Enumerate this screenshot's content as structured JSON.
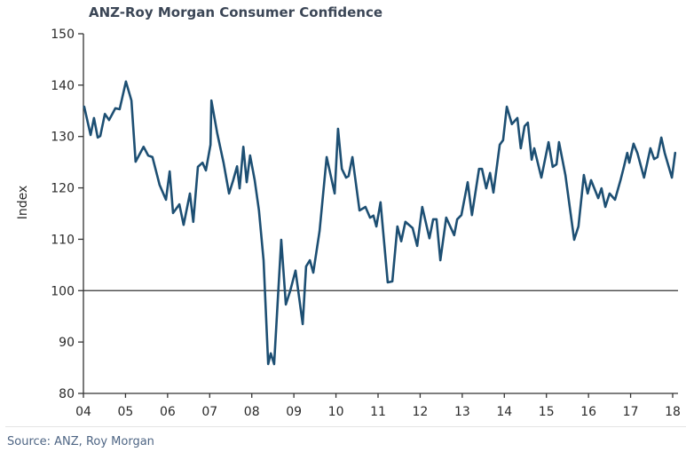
{
  "chart_data": {
    "type": "line",
    "title": "ANZ-Roy Morgan Consumer Confidence",
    "xlabel": "",
    "ylabel": "Index",
    "source": "Source: ANZ, Roy Morgan",
    "ylim": [
      80,
      150
    ],
    "xlim": [
      2004,
      2018.1
    ],
    "yticks": [
      80,
      90,
      100,
      110,
      120,
      130,
      140,
      150
    ],
    "ytick_labels": [
      "80",
      "90",
      "100",
      "110",
      "120",
      "130",
      "140",
      "150"
    ],
    "xticks": [
      2004,
      2005,
      2006,
      2007,
      2008,
      2009,
      2010,
      2011,
      2012,
      2013,
      2014,
      2015,
      2016,
      2017,
      2018
    ],
    "xtick_labels": [
      "04",
      "05",
      "06",
      "07",
      "08",
      "09",
      "10",
      "11",
      "12",
      "13",
      "14",
      "15",
      "16",
      "17",
      "18"
    ],
    "reference_line": {
      "y": 100,
      "color": "#333333"
    },
    "grid": false,
    "legend": "none",
    "series": [
      {
        "name": "ANZ-Roy Morgan Consumer Confidence",
        "color": "#1d4f73",
        "x": [
          2004.02,
          2004.17,
          2004.25,
          2004.34,
          2004.4,
          2004.51,
          2004.61,
          2004.76,
          2004.86,
          2005.01,
          2005.14,
          2005.24,
          2005.43,
          2005.54,
          2005.64,
          2005.81,
          2005.96,
          2006.05,
          2006.13,
          2006.28,
          2006.38,
          2006.53,
          2006.61,
          2006.72,
          2006.83,
          2006.91,
          2007.02,
          2007.04,
          2007.18,
          2007.33,
          2007.46,
          2007.56,
          2007.65,
          2007.71,
          2007.8,
          2007.88,
          2007.96,
          2008.07,
          2008.17,
          2008.28,
          2008.39,
          2008.45,
          2008.53,
          2008.7,
          2008.81,
          2008.91,
          2009.04,
          2009.21,
          2009.29,
          2009.38,
          2009.46,
          2009.61,
          2009.78,
          2009.97,
          2010.05,
          2010.14,
          2010.24,
          2010.3,
          2010.39,
          2010.56,
          2010.7,
          2010.81,
          2010.89,
          2010.96,
          2011.06,
          2011.23,
          2011.34,
          2011.46,
          2011.55,
          2011.65,
          2011.82,
          2011.93,
          2012.05,
          2012.22,
          2012.31,
          2012.39,
          2012.48,
          2012.62,
          2012.81,
          2012.88,
          2012.98,
          2013.13,
          2013.23,
          2013.4,
          2013.47,
          2013.57,
          2013.66,
          2013.74,
          2013.89,
          2013.97,
          2014.06,
          2014.18,
          2014.31,
          2014.39,
          2014.48,
          2014.56,
          2014.65,
          2014.71,
          2014.88,
          2015.05,
          2015.15,
          2015.24,
          2015.3,
          2015.45,
          2015.66,
          2015.76,
          2015.89,
          2015.98,
          2016.06,
          2016.23,
          2016.31,
          2016.4,
          2016.5,
          2016.63,
          2016.76,
          2016.84,
          2016.92,
          2016.97,
          2017.07,
          2017.16,
          2017.32,
          2017.47,
          2017.56,
          2017.64,
          2017.73,
          2017.81,
          2017.98,
          2018.06
        ],
        "values": [
          135.8,
          130.3,
          133.6,
          129.8,
          130.1,
          134.4,
          133.2,
          135.5,
          135.3,
          140.7,
          137.0,
          125.1,
          128.0,
          126.3,
          126.0,
          120.6,
          117.7,
          123.2,
          115.1,
          116.8,
          112.8,
          118.9,
          113.4,
          124.1,
          124.9,
          123.4,
          128.4,
          137.0,
          130.6,
          124.9,
          118.9,
          121.5,
          124.2,
          119.9,
          128.0,
          121.1,
          126.3,
          121.5,
          115.6,
          105.9,
          85.7,
          87.8,
          85.7,
          109.9,
          97.3,
          99.9,
          103.9,
          93.5,
          104.7,
          105.9,
          103.5,
          111.6,
          126.0,
          118.9,
          131.5,
          123.7,
          122.0,
          122.3,
          126.0,
          115.6,
          116.3,
          114.2,
          114.6,
          112.5,
          117.2,
          101.6,
          101.8,
          112.5,
          109.6,
          113.4,
          112.2,
          108.7,
          116.3,
          110.2,
          113.9,
          113.9,
          105.9,
          114.2,
          110.8,
          113.9,
          114.7,
          121.1,
          114.7,
          123.7,
          123.7,
          119.9,
          122.9,
          119.1,
          128.4,
          129.3,
          135.8,
          132.4,
          133.6,
          127.7,
          132.0,
          132.7,
          125.5,
          127.7,
          122.0,
          128.9,
          124.1,
          124.6,
          128.9,
          122.5,
          109.9,
          112.5,
          122.5,
          118.9,
          121.5,
          118.0,
          119.9,
          116.3,
          118.9,
          117.7,
          121.5,
          124.1,
          126.8,
          124.9,
          128.6,
          126.8,
          122.0,
          127.7,
          125.6,
          126.0,
          129.8,
          126.8,
          122.0,
          126.8
        ]
      }
    ]
  }
}
